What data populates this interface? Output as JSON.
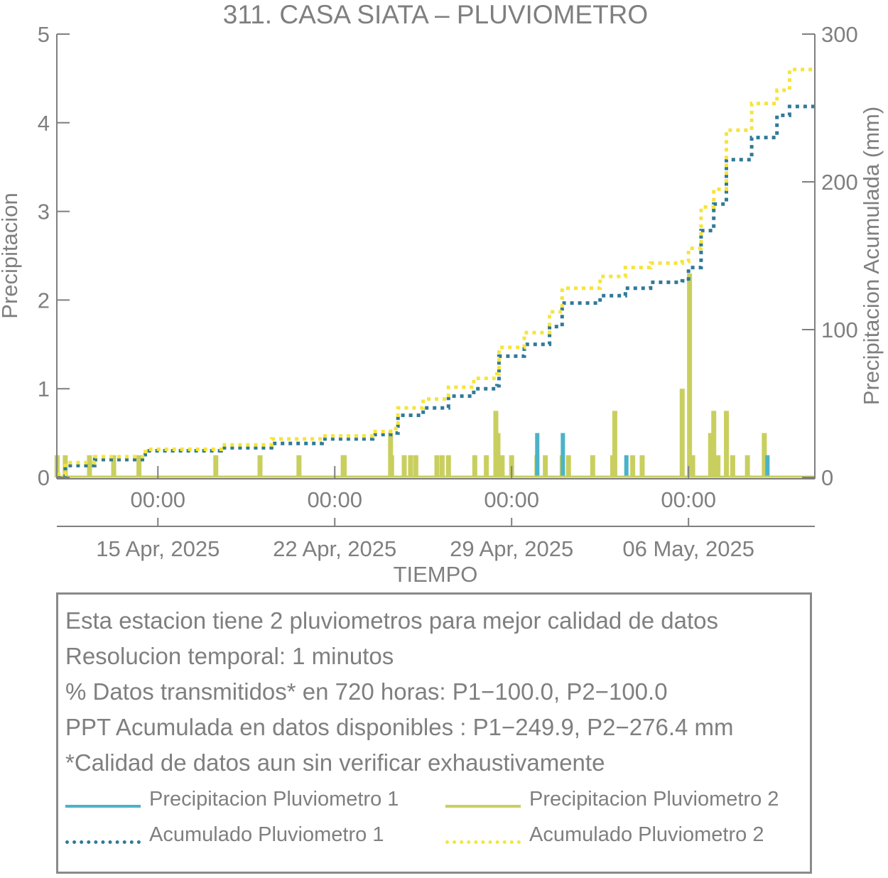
{
  "chart_data": {
    "type": "bar+line",
    "title": "311. CASA SIATA – PLUVIOMETRO",
    "xlabel": "TIEMPO",
    "ylabel_left": "Precipitacion",
    "ylabel_right": "Precipitacion Acumulada (mm)",
    "xlim": [
      "2025-04-11T00:00",
      "2025-05-11T00:00"
    ],
    "ylim_left": [
      0,
      5
    ],
    "ylim_right": [
      0,
      300
    ],
    "yticks_left": [
      "0",
      "1",
      "2",
      "3",
      "4",
      "5"
    ],
    "yticks_right": [
      "0",
      "100",
      "200",
      "300"
    ],
    "xticks_time": [
      "00:00",
      "00:00",
      "00:00",
      "00:00"
    ],
    "xticks_date": [
      "15 Apr, 2025",
      "22 Apr, 2025",
      "29 Apr, 2025",
      "06 May, 2025"
    ],
    "xtick_dates_iso": [
      "2025-04-15",
      "2025-04-22",
      "2025-04-29",
      "2025-05-06"
    ],
    "colors": {
      "p1_bar": "#4bb3c7",
      "p2_bar": "#c9cf5e",
      "p1_cum": "#2f7a99",
      "p2_cum": "#f6e43a",
      "axis": "#7f7f7f"
    },
    "precip_p1": [
      {
        "date": "2025-04-30T00:20",
        "value": 0.5
      },
      {
        "date": "2025-05-01T00:40",
        "value": 0.5
      },
      {
        "date": "2025-05-03T13:00",
        "value": 0.25
      },
      {
        "date": "2025-05-09T03:00",
        "value": 0.25
      }
    ],
    "precip_p2": [
      {
        "date": "2025-04-11T00:15",
        "value": 0.25
      },
      {
        "date": "2025-04-11T08:00",
        "value": 0.25
      },
      {
        "date": "2025-04-12T07:00",
        "value": 0.25
      },
      {
        "date": "2025-04-13T06:00",
        "value": 0.25
      },
      {
        "date": "2025-04-14T06:00",
        "value": 0.25
      },
      {
        "date": "2025-04-17T07:00",
        "value": 0.25
      },
      {
        "date": "2025-04-19T01:00",
        "value": 0.25
      },
      {
        "date": "2025-04-20T14:00",
        "value": 0.25
      },
      {
        "date": "2025-04-22T08:00",
        "value": 0.25
      },
      {
        "date": "2025-04-22T09:00",
        "value": 0.25
      },
      {
        "date": "2025-04-24T05:00",
        "value": 0.5
      },
      {
        "date": "2025-04-24T06:00",
        "value": 0.25
      },
      {
        "date": "2025-04-24T18:00",
        "value": 0.25
      },
      {
        "date": "2025-04-25T00:00",
        "value": 0.25
      },
      {
        "date": "2025-04-25T05:00",
        "value": 0.25
      },
      {
        "date": "2025-04-26T01:00",
        "value": 0.25
      },
      {
        "date": "2025-04-26T06:00",
        "value": 0.25
      },
      {
        "date": "2025-04-26T12:00",
        "value": 0.25
      },
      {
        "date": "2025-04-27T13:00",
        "value": 0.25
      },
      {
        "date": "2025-04-28T00:00",
        "value": 0.25
      },
      {
        "date": "2025-04-28T09:00",
        "value": 0.75
      },
      {
        "date": "2025-04-28T11:00",
        "value": 0.5
      },
      {
        "date": "2025-04-28T15:00",
        "value": 0.25
      },
      {
        "date": "2025-04-29T00:00",
        "value": 0.25
      },
      {
        "date": "2025-04-30T00:00",
        "value": 0.25
      },
      {
        "date": "2025-04-30T08:00",
        "value": 0.25
      },
      {
        "date": "2025-05-01T00:00",
        "value": 0.25
      },
      {
        "date": "2025-05-01T06:00",
        "value": 0.25
      },
      {
        "date": "2025-05-02T05:00",
        "value": 0.25
      },
      {
        "date": "2025-05-03T00:00",
        "value": 0.25
      },
      {
        "date": "2025-05-03T02:00",
        "value": 0.75
      },
      {
        "date": "2025-05-03T19:00",
        "value": 0.25
      },
      {
        "date": "2025-05-04T04:00",
        "value": 0.25
      },
      {
        "date": "2025-05-05T18:00",
        "value": 1.0
      },
      {
        "date": "2025-05-06T01:00",
        "value": 2.3
      },
      {
        "date": "2025-05-06T04:00",
        "value": 0.25
      },
      {
        "date": "2025-05-06T21:00",
        "value": 0.5
      },
      {
        "date": "2025-05-07T00:00",
        "value": 0.75
      },
      {
        "date": "2025-05-07T04:00",
        "value": 0.25
      },
      {
        "date": "2025-05-07T12:00",
        "value": 0.75
      },
      {
        "date": "2025-05-07T18:00",
        "value": 0.25
      },
      {
        "date": "2025-05-08T08:00",
        "value": 0.25
      },
      {
        "date": "2025-05-09T00:00",
        "value": 0.5
      }
    ],
    "cumulative_p1": [
      {
        "date": "2025-04-11T00:00",
        "value": 0
      },
      {
        "date": "2025-04-11T08:00",
        "value": 8
      },
      {
        "date": "2025-04-12T12:00",
        "value": 12
      },
      {
        "date": "2025-04-14T12:00",
        "value": 18
      },
      {
        "date": "2025-04-17T12:00",
        "value": 20
      },
      {
        "date": "2025-04-19T12:00",
        "value": 23
      },
      {
        "date": "2025-04-21T12:00",
        "value": 26
      },
      {
        "date": "2025-04-23T12:00",
        "value": 29
      },
      {
        "date": "2025-04-24T05:00",
        "value": 30
      },
      {
        "date": "2025-04-24T12:00",
        "value": 42
      },
      {
        "date": "2025-04-25T12:00",
        "value": 47
      },
      {
        "date": "2025-04-26T12:00",
        "value": 55
      },
      {
        "date": "2025-04-27T12:00",
        "value": 60
      },
      {
        "date": "2025-04-28T10:00",
        "value": 62
      },
      {
        "date": "2025-04-28T12:00",
        "value": 82
      },
      {
        "date": "2025-04-29T12:00",
        "value": 90
      },
      {
        "date": "2025-04-30T12:00",
        "value": 102
      },
      {
        "date": "2025-05-01T00:00",
        "value": 118
      },
      {
        "date": "2025-05-02T12:00",
        "value": 123
      },
      {
        "date": "2025-05-03T12:00",
        "value": 128
      },
      {
        "date": "2025-05-04T12:00",
        "value": 132
      },
      {
        "date": "2025-05-05T18:00",
        "value": 133
      },
      {
        "date": "2025-05-06T00:00",
        "value": 142
      },
      {
        "date": "2025-05-06T12:00",
        "value": 167
      },
      {
        "date": "2025-05-07T00:00",
        "value": 185
      },
      {
        "date": "2025-05-07T12:00",
        "value": 215
      },
      {
        "date": "2025-05-08T12:00",
        "value": 230
      },
      {
        "date": "2025-05-09T12:00",
        "value": 245
      },
      {
        "date": "2025-05-10T00:00",
        "value": 251
      },
      {
        "date": "2025-05-11T00:00",
        "value": 251
      }
    ],
    "cumulative_p2": [
      {
        "date": "2025-04-11T00:00",
        "value": 2
      },
      {
        "date": "2025-04-11T08:00",
        "value": 10
      },
      {
        "date": "2025-04-12T12:00",
        "value": 14
      },
      {
        "date": "2025-04-14T12:00",
        "value": 19
      },
      {
        "date": "2025-04-17T12:00",
        "value": 22
      },
      {
        "date": "2025-04-19T12:00",
        "value": 26
      },
      {
        "date": "2025-04-21T12:00",
        "value": 28
      },
      {
        "date": "2025-04-23T12:00",
        "value": 31
      },
      {
        "date": "2025-04-24T05:00",
        "value": 33
      },
      {
        "date": "2025-04-24T12:00",
        "value": 47
      },
      {
        "date": "2025-04-25T12:00",
        "value": 53
      },
      {
        "date": "2025-04-26T12:00",
        "value": 61
      },
      {
        "date": "2025-04-27T12:00",
        "value": 67
      },
      {
        "date": "2025-04-28T10:00",
        "value": 70
      },
      {
        "date": "2025-04-28T12:00",
        "value": 88
      },
      {
        "date": "2025-04-29T12:00",
        "value": 98
      },
      {
        "date": "2025-04-30T12:00",
        "value": 112
      },
      {
        "date": "2025-05-01T00:00",
        "value": 128
      },
      {
        "date": "2025-05-02T12:00",
        "value": 136
      },
      {
        "date": "2025-05-03T12:00",
        "value": 142
      },
      {
        "date": "2025-05-04T12:00",
        "value": 145
      },
      {
        "date": "2025-05-05T18:00",
        "value": 146
      },
      {
        "date": "2025-05-06T00:00",
        "value": 155
      },
      {
        "date": "2025-05-06T12:00",
        "value": 183
      },
      {
        "date": "2025-05-07T00:00",
        "value": 195
      },
      {
        "date": "2025-05-07T12:00",
        "value": 235
      },
      {
        "date": "2025-05-08T12:00",
        "value": 253
      },
      {
        "date": "2025-05-09T12:00",
        "value": 262
      },
      {
        "date": "2025-05-10T00:00",
        "value": 276
      },
      {
        "date": "2025-05-11T00:00",
        "value": 276
      }
    ]
  },
  "info": {
    "lines": [
      "Esta estacion tiene 2 pluviometros para mejor calidad de datos",
      "Resolucion temporal: 1 minutos",
      "% Datos transmitidos* en 720 horas: P1−100.0, P2−100.0",
      "PPT Acumulada en datos disponibles : P1−249.9, P2−276.4 mm",
      "*Calidad de datos aun sin verificar exhaustivamente"
    ]
  },
  "legend": {
    "p1_bar_label": "Precipitacion Pluviometro 1",
    "p2_bar_label": "Precipitacion Pluviometro 2",
    "p1_cum_label": "Acumulado Pluviometro 1",
    "p2_cum_label": "Acumulado Pluviometro 2"
  }
}
